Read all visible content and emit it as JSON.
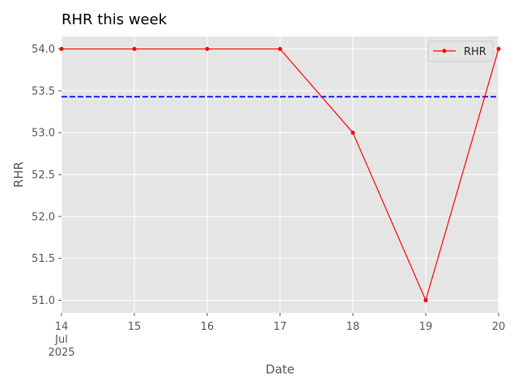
{
  "chart_data": {
    "type": "line",
    "title": "RHR this week",
    "xlabel": "Date",
    "ylabel": "RHR",
    "x": [
      "2025-07-14",
      "2025-07-15",
      "2025-07-16",
      "2025-07-17",
      "2025-07-18",
      "2025-07-19",
      "2025-07-20"
    ],
    "x_tick_labels": [
      "14",
      "15",
      "16",
      "17",
      "18",
      "19",
      "20"
    ],
    "x_tick_sublabels": [
      "Jul",
      "2025"
    ],
    "series": [
      {
        "name": "RHR",
        "values": [
          54.0,
          54.0,
          54.0,
          54.0,
          53.0,
          51.0,
          54.0
        ],
        "color": "#ff0000",
        "marker": "circle"
      }
    ],
    "reference_line": {
      "value": 53.43,
      "color": "#0000ff",
      "style": "dashed"
    },
    "ylim": [
      50.85,
      54.15
    ],
    "y_ticks": [
      51.0,
      51.5,
      52.0,
      52.5,
      53.0,
      53.5,
      54.0
    ],
    "y_tick_labels": [
      "51.0",
      "51.5",
      "52.0",
      "52.5",
      "53.0",
      "53.5",
      "54.0"
    ],
    "grid": true,
    "legend_position": "top-right",
    "plot_background": "#e5e5e5"
  }
}
